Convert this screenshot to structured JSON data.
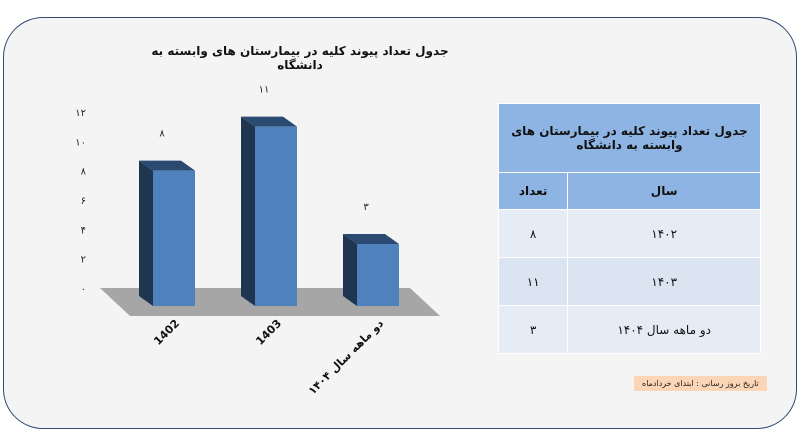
{
  "chart_title": "جدول تعداد پیوند کلیه در بیمارستان های وابسته به دانشگاه",
  "chart_data": {
    "type": "bar",
    "categories": [
      "1402",
      "1403",
      "دو ماهه سال ۱۴۰۴"
    ],
    "values": [
      8,
      11,
      3
    ],
    "value_labels": [
      "۸",
      "۱۱",
      "۳"
    ],
    "title": "جدول تعداد پیوند کلیه در بیمارستان های وابسته به دانشگاه",
    "ylim": [
      0,
      12
    ],
    "yticks": [
      "۰",
      "۲",
      "۴",
      "۶",
      "۸",
      "۱۰",
      "۱۲"
    ],
    "grid": false,
    "legend": "none",
    "bar_color": "#4f81bd",
    "bar_dark": "#1f3550",
    "floor_color": "#a6a6a6"
  },
  "table": {
    "title": "جدول تعداد پیوند کلیه در بیمارستان های وابسته به دانشگاه",
    "headers": [
      "سال",
      "تعداد"
    ],
    "rows": [
      {
        "year": "۱۴۰۲",
        "count": "۸"
      },
      {
        "year": "۱۴۰۳",
        "count": "۱۱"
      },
      {
        "year": "دو ماهه سال ۱۴۰۴",
        "count": "۳"
      }
    ]
  },
  "note": "تاریخ بروز رسانی : ابتدای خردادماه"
}
